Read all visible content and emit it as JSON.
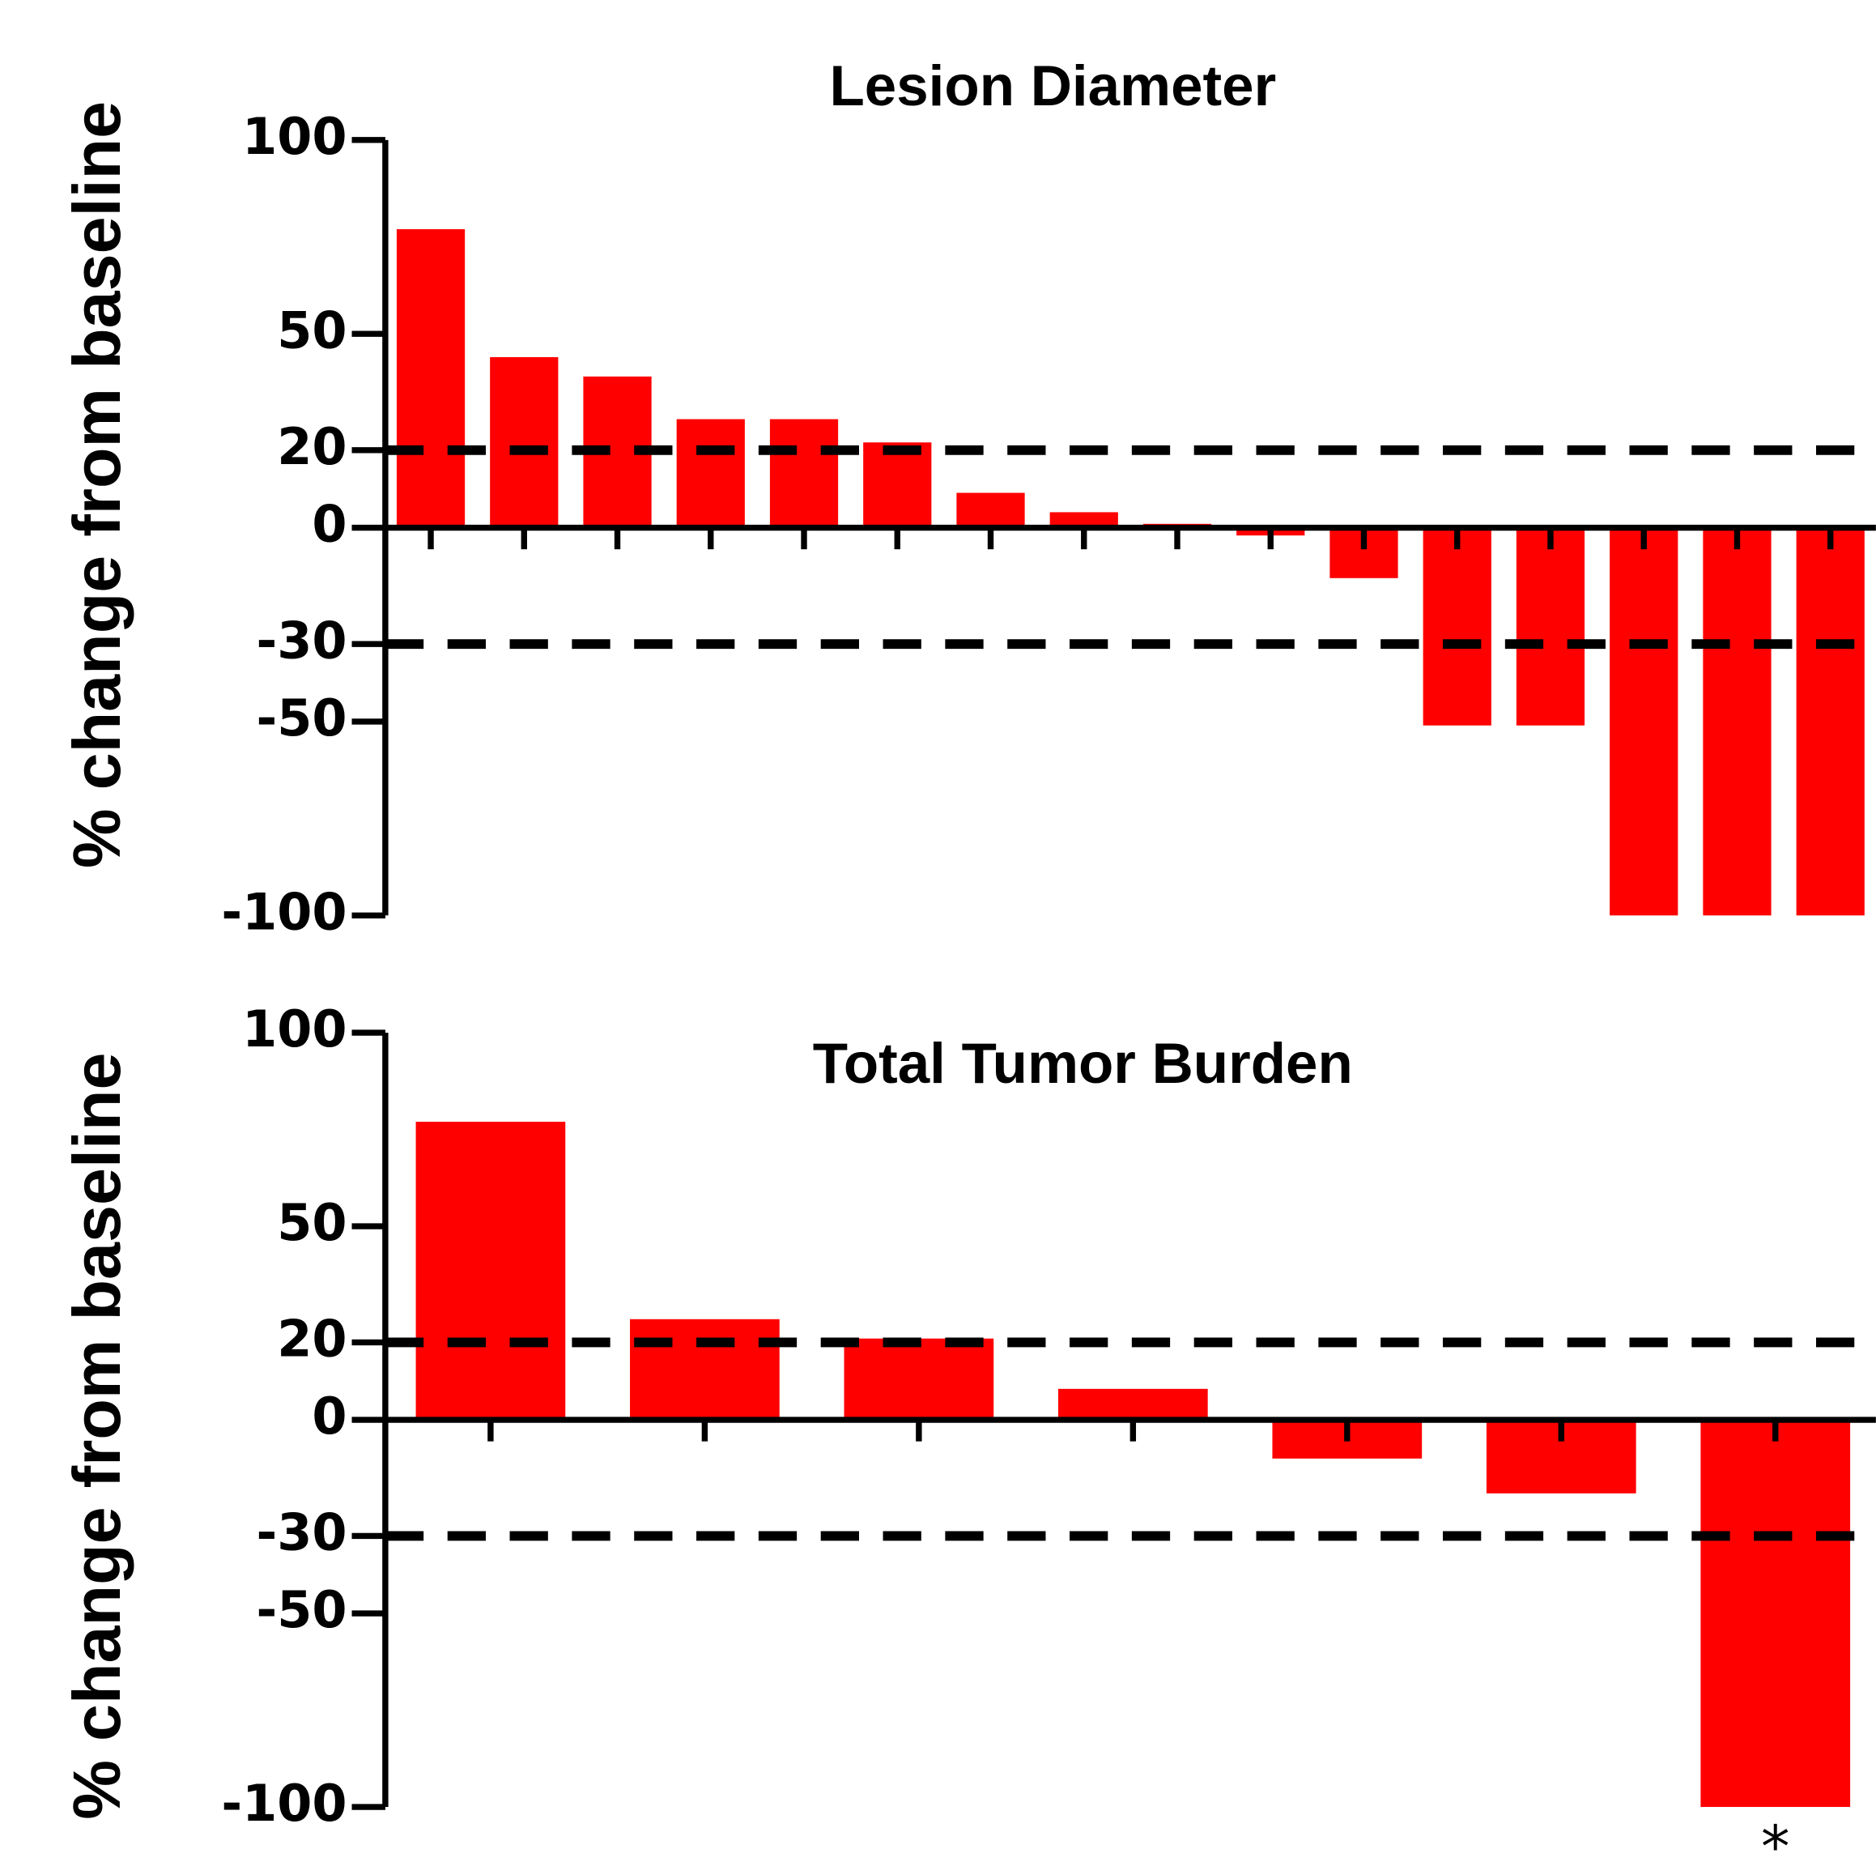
{
  "chart_data": [
    {
      "type": "bar",
      "title": "Lesion Diameter",
      "y_label": "% change from baseline",
      "categories": [
        null,
        null,
        null,
        null,
        null,
        null,
        null,
        null,
        null,
        null,
        null,
        null,
        null,
        null,
        null,
        null
      ],
      "values": [
        77,
        44,
        39,
        28,
        28,
        22,
        9,
        4,
        1,
        -2,
        -13,
        -51,
        -51,
        -100,
        -100,
        -100
      ],
      "color": "#ff0000",
      "ylim": [
        -100,
        100
      ],
      "yticks": [
        100,
        50,
        20,
        0,
        -30,
        -50,
        -100
      ],
      "reference_lines": [
        20,
        -30
      ]
    },
    {
      "type": "bar",
      "title": "Total Tumor Burden",
      "y_label": "% change from baseline",
      "categories": [
        null,
        null,
        null,
        null,
        null,
        null,
        null
      ],
      "values": [
        77,
        26,
        21,
        8,
        -10,
        -19,
        -100
      ],
      "color": "#ff0000",
      "ylim": [
        -100,
        100
      ],
      "yticks": [
        100,
        50,
        20,
        0,
        -30,
        -50,
        -100
      ],
      "reference_lines": [
        20,
        -30
      ],
      "annotation": "*"
    }
  ]
}
